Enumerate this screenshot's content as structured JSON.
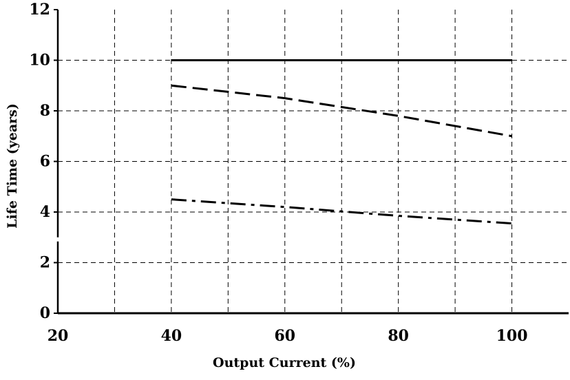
{
  "chart_data": {
    "type": "line",
    "title": "",
    "xlabel": "Output Current (%)",
    "ylabel": "Life Time (years)",
    "xlim": [
      20,
      110
    ],
    "ylim": [
      0,
      12
    ],
    "x_ticks": [
      20,
      40,
      60,
      80,
      100
    ],
    "y_ticks": [
      0,
      2,
      4,
      6,
      8,
      10,
      12
    ],
    "x_tick_labels": [
      "20",
      "40",
      "60",
      "80",
      "100"
    ],
    "y_tick_labels": [
      "0",
      "2",
      "4",
      "6",
      "8",
      "10",
      "12"
    ],
    "x_grid": [
      30,
      40,
      50,
      60,
      70,
      80,
      90,
      100
    ],
    "y_grid": [
      2,
      4,
      6,
      8,
      10
    ],
    "grid": true,
    "grid_style": "dashed",
    "legend": "none",
    "series": [
      {
        "style": "solid",
        "x": [
          40,
          100
        ],
        "y": [
          10.0,
          10.0
        ]
      },
      {
        "style": "dashed",
        "x": [
          40,
          60,
          80,
          100
        ],
        "y": [
          9.0,
          8.5,
          7.8,
          7.0
        ]
      },
      {
        "style": "dashdot",
        "x": [
          40,
          60,
          80,
          100
        ],
        "y": [
          4.5,
          4.2,
          3.85,
          3.55
        ]
      }
    ]
  }
}
